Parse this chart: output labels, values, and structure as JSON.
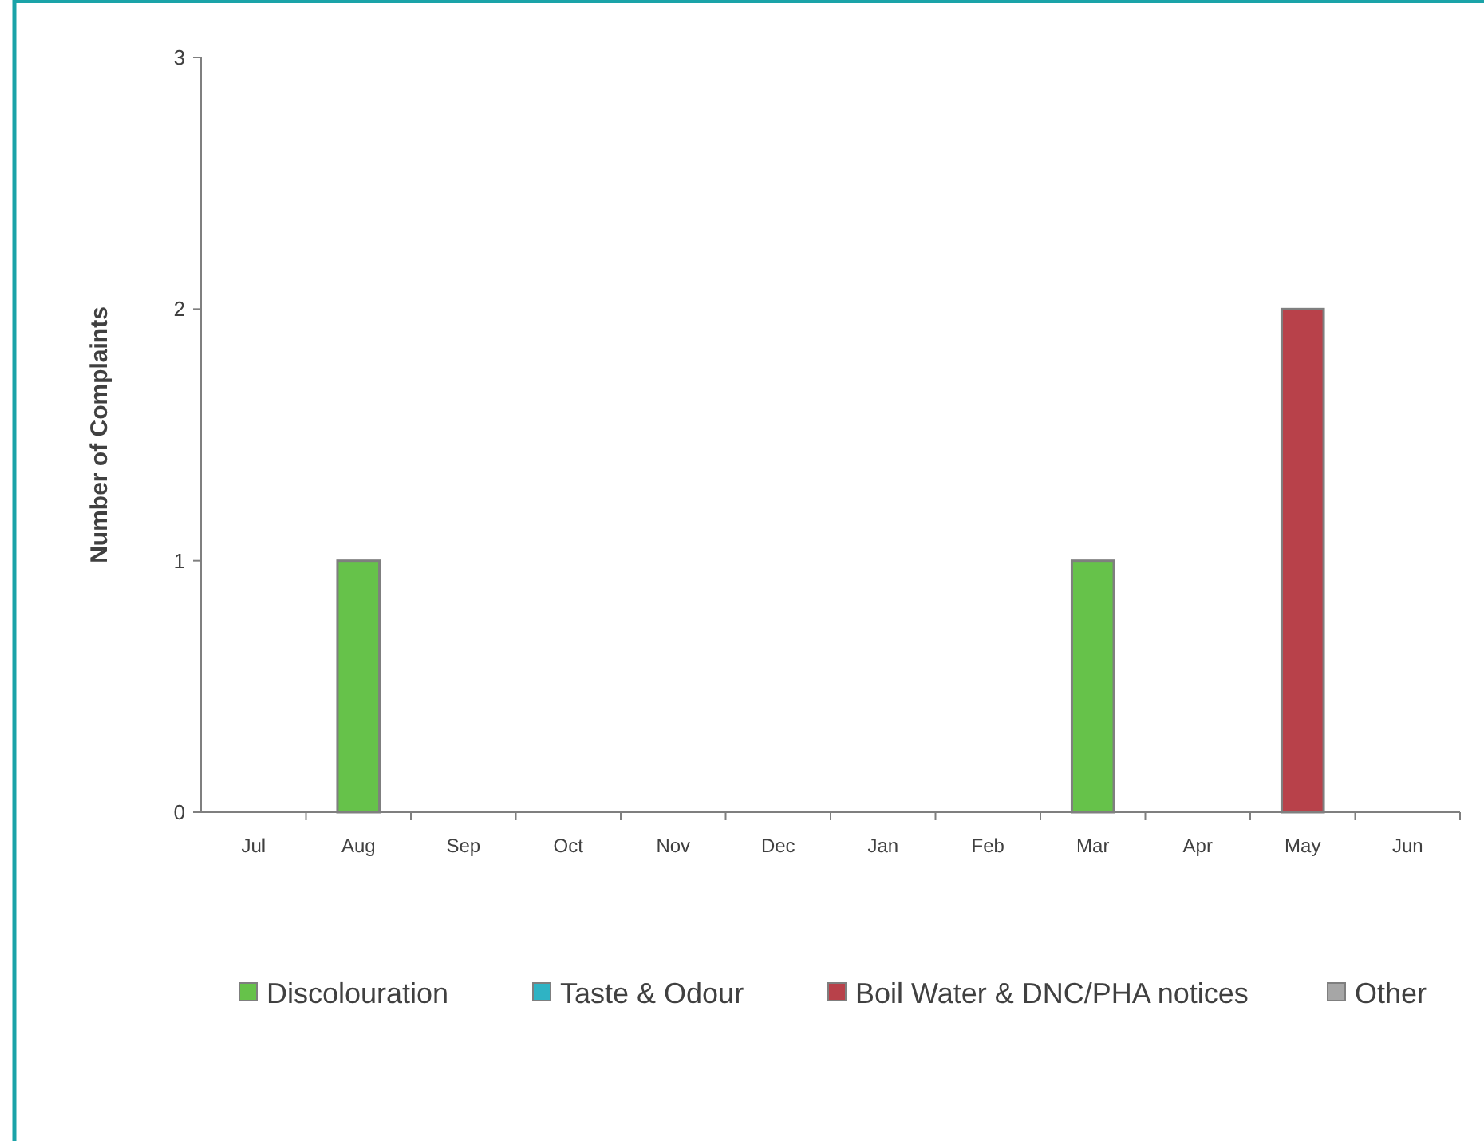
{
  "chart_data": {
    "type": "bar",
    "stacked": true,
    "ylabel": "Number of Complaints",
    "categories": [
      "Jul",
      "Aug",
      "Sep",
      "Oct",
      "Nov",
      "Dec",
      "Jan",
      "Feb",
      "Mar",
      "Apr",
      "May",
      "Jun"
    ],
    "series": [
      {
        "name": "Discolouration",
        "color": "#66c24a",
        "values": [
          0,
          1,
          0,
          0,
          0,
          0,
          0,
          0,
          1,
          0,
          0,
          0
        ]
      },
      {
        "name": "Taste & Odour",
        "color": "#2fb3c4",
        "values": [
          0,
          0,
          0,
          0,
          0,
          0,
          0,
          0,
          0,
          0,
          0,
          0
        ]
      },
      {
        "name": "Boil Water & DNC/PHA notices",
        "color": "#b8414a",
        "values": [
          0,
          0,
          0,
          0,
          0,
          0,
          0,
          0,
          0,
          0,
          2,
          0
        ]
      },
      {
        "name": "Other",
        "color": "#a6a6a6",
        "values": [
          0,
          0,
          0,
          0,
          0,
          0,
          0,
          0,
          0,
          0,
          0,
          0
        ]
      }
    ],
    "ylim": [
      0,
      3
    ],
    "yticks": [
      0,
      1,
      2,
      3
    ],
    "grid": false,
    "legend": "bottom"
  }
}
